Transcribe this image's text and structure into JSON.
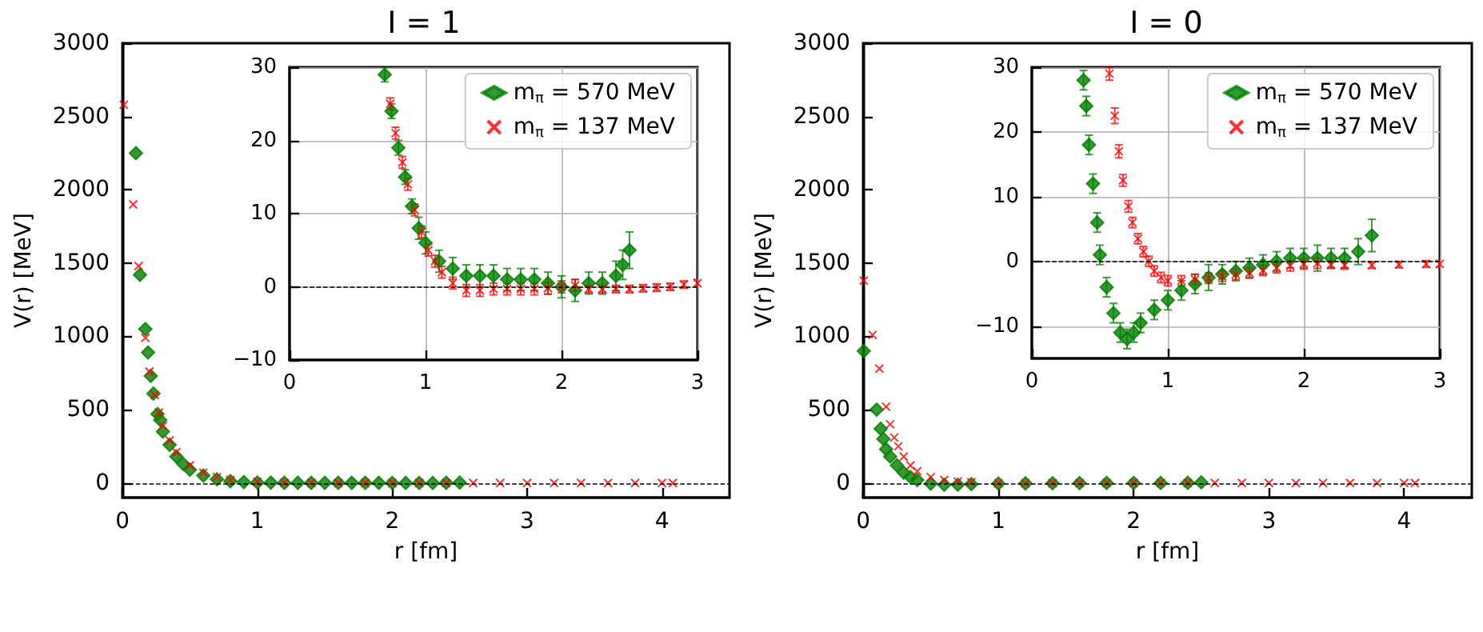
{
  "chart_data": [
    {
      "type": "scatter",
      "title": "I = 1",
      "xlabel": "r [fm]",
      "ylabel": "V(r) [MeV]",
      "xlim": [
        0,
        4.5
      ],
      "ylim": [
        -100,
        3000
      ],
      "xticks": [
        0,
        1,
        2,
        3,
        4
      ],
      "yticks": [
        0,
        500,
        1000,
        1500,
        2000,
        2500,
        3000
      ],
      "grid": false,
      "legend": false,
      "ref_lines": [
        {
          "axis": "y",
          "value": 0,
          "color": "#000000",
          "line_style": "dashed"
        }
      ],
      "series": [
        {
          "color": "#008000",
          "marker": "diamond",
          "x": [
            0.1,
            0.13,
            0.17,
            0.19,
            0.21,
            0.23,
            0.26,
            0.28,
            0.3,
            0.35,
            0.4,
            0.45,
            0.5,
            0.6,
            0.7,
            0.8,
            0.9,
            1.0,
            1.1,
            1.2,
            1.3,
            1.4,
            1.5,
            1.6,
            1.7,
            1.8,
            1.9,
            2.0,
            2.1,
            2.2,
            2.3,
            2.4,
            2.5
          ],
          "values": [
            2250,
            1420,
            1050,
            890,
            730,
            610,
            470,
            430,
            350,
            260,
            180,
            130,
            90,
            50,
            25,
            12,
            6,
            3,
            2,
            1,
            1,
            1,
            1,
            1,
            1,
            1,
            1,
            0,
            0,
            0,
            0,
            1,
            3
          ]
        },
        {
          "color": "#ff0000",
          "marker": "cross",
          "x": [
            0.01,
            0.08,
            0.12,
            0.17,
            0.2,
            0.24,
            0.27,
            0.3,
            0.35,
            0.4,
            0.5,
            0.6,
            0.7,
            0.8,
            1.0,
            1.2,
            1.4,
            1.6,
            1.8,
            2.0,
            2.2,
            2.4,
            2.6,
            2.8,
            3.0,
            3.2,
            3.4,
            3.6,
            3.8,
            4.0,
            4.08
          ],
          "values": [
            2580,
            1900,
            1480,
            990,
            760,
            600,
            480,
            390,
            290,
            210,
            120,
            70,
            40,
            20,
            8,
            1,
            0,
            0,
            0,
            0,
            0,
            0,
            0,
            0,
            0,
            0,
            0,
            0,
            0,
            0,
            0
          ]
        }
      ]
    },
    {
      "type": "scatter",
      "xlim": [
        0,
        3
      ],
      "ylim": [
        -10,
        30
      ],
      "xticks": [
        0,
        1,
        2,
        3
      ],
      "yticks": [
        -10,
        0,
        10,
        20,
        30
      ],
      "grid": true,
      "legend": "top right",
      "ref_lines": [
        {
          "axis": "y",
          "value": 0,
          "color": "#000000",
          "line_style": "dashed"
        }
      ],
      "series": [
        {
          "name": "m$_{π}$ = 570 MeV",
          "color": "#008000",
          "marker": "diamond",
          "x": [
            0.7,
            0.75,
            0.8,
            0.85,
            0.9,
            0.95,
            1.0,
            1.1,
            1.2,
            1.3,
            1.4,
            1.5,
            1.6,
            1.7,
            1.8,
            1.9,
            2.0,
            2.1,
            2.2,
            2.3,
            2.4,
            2.45,
            2.5
          ],
          "values": [
            29,
            24,
            19,
            15,
            11,
            8,
            6,
            3.5,
            2.5,
            1.5,
            1.5,
            1.5,
            1,
            1,
            1,
            0.5,
            0,
            -0.5,
            0.5,
            0.5,
            1.5,
            3,
            5
          ],
          "errors": [
            1,
            1,
            1,
            1,
            1,
            1.5,
            1.5,
            1.5,
            1.5,
            1.5,
            1.5,
            1.5,
            1.5,
            1.5,
            1.5,
            1.5,
            1.5,
            1.5,
            1.5,
            1.5,
            2,
            2,
            2.5
          ]
        },
        {
          "name": "m$_{π}$ = 137 MeV",
          "color": "#ff0000",
          "marker": "cross",
          "x": [
            0.74,
            0.78,
            0.83,
            0.87,
            0.92,
            0.97,
            1.02,
            1.07,
            1.12,
            1.2,
            1.3,
            1.4,
            1.5,
            1.6,
            1.7,
            1.8,
            1.9,
            2.0,
            2.1,
            2.2,
            2.3,
            2.4,
            2.5,
            2.6,
            2.7,
            2.8,
            2.9,
            3.0
          ],
          "values": [
            25,
            21,
            17,
            14,
            10.5,
            7.5,
            5,
            3.5,
            2,
            0.5,
            -0.5,
            -0.5,
            -0.3,
            -0.3,
            -0.3,
            -0.3,
            -0.2,
            0,
            0.2,
            -0.3,
            -0.3,
            -0.3,
            -0.3,
            -0.2,
            -0.1,
            0,
            0.3,
            0.5
          ],
          "errors": [
            0.8,
            0.8,
            0.8,
            0.8,
            0.8,
            0.8,
            0.8,
            0.8,
            0.8,
            0.8,
            0.8,
            0.8,
            0.8,
            0.8,
            0.8,
            0.8,
            0.8,
            0.8,
            0.8,
            0.5,
            0.5,
            0.5,
            0.5,
            0.5,
            0.5,
            0.5,
            0.5,
            0.5
          ]
        }
      ]
    },
    {
      "type": "scatter",
      "title": "I = 0",
      "xlabel": "r [fm]",
      "ylabel": "V(r) [MeV]",
      "xlim": [
        0,
        4.5
      ],
      "ylim": [
        -100,
        3000
      ],
      "xticks": [
        0,
        1,
        2,
        3,
        4
      ],
      "yticks": [
        0,
        500,
        1000,
        1500,
        2000,
        2500,
        3000
      ],
      "grid": false,
      "legend": false,
      "ref_lines": [
        {
          "axis": "y",
          "value": 0,
          "color": "#000000",
          "line_style": "dashed"
        }
      ],
      "series": [
        {
          "color": "#008000",
          "marker": "diamond",
          "x": [
            0.005,
            0.1,
            0.13,
            0.15,
            0.17,
            0.2,
            0.25,
            0.3,
            0.35,
            0.4,
            0.5,
            0.6,
            0.7,
            0.8,
            1.0,
            1.2,
            1.4,
            1.6,
            1.8,
            2.0,
            2.2,
            2.4,
            2.5
          ],
          "values": [
            900,
            500,
            370,
            300,
            230,
            180,
            120,
            70,
            40,
            20,
            -5,
            -12,
            -12,
            -8,
            -4,
            -3,
            -2,
            -1,
            0,
            0,
            0,
            1,
            4
          ]
        },
        {
          "color": "#ff0000",
          "marker": "cross",
          "x": [
            0.005,
            0.07,
            0.12,
            0.17,
            0.2,
            0.23,
            0.26,
            0.3,
            0.35,
            0.4,
            0.5,
            0.6,
            0.7,
            0.8,
            1.0,
            1.2,
            1.4,
            1.6,
            1.8,
            2.0,
            2.2,
            2.4,
            2.6,
            2.8,
            3.0,
            3.2,
            3.4,
            3.6,
            3.8,
            4.0,
            4.08
          ],
          "values": [
            1380,
            1010,
            780,
            520,
            400,
            310,
            250,
            180,
            120,
            80,
            40,
            20,
            10,
            5,
            -3,
            -3,
            -2,
            -2,
            -1,
            0,
            0,
            0,
            0,
            0,
            0,
            0,
            0,
            0,
            0,
            0,
            0
          ]
        }
      ]
    },
    {
      "type": "scatter",
      "xlim": [
        0,
        3
      ],
      "ylim": [
        -15,
        30
      ],
      "xticks": [
        0,
        1,
        2,
        3
      ],
      "yticks": [
        -10,
        0,
        10,
        20,
        30
      ],
      "grid": true,
      "legend": "top right",
      "ref_lines": [
        {
          "axis": "y",
          "value": 0,
          "color": "#000000",
          "line_style": "dashed"
        }
      ],
      "series": [
        {
          "name": "m$_{π}$ = 570 MeV",
          "color": "#008000",
          "marker": "diamond",
          "x": [
            0.38,
            0.4,
            0.42,
            0.45,
            0.48,
            0.5,
            0.55,
            0.6,
            0.65,
            0.7,
            0.75,
            0.8,
            0.9,
            1.0,
            1.1,
            1.2,
            1.3,
            1.4,
            1.5,
            1.6,
            1.7,
            1.8,
            1.9,
            2.0,
            2.1,
            2.2,
            2.3,
            2.4,
            2.5
          ],
          "values": [
            28,
            24,
            18,
            12,
            6,
            1,
            -4,
            -8,
            -11,
            -12,
            -11,
            -9.5,
            -7.5,
            -6,
            -4.5,
            -3.5,
            -2.5,
            -2,
            -1.5,
            -1,
            -0.5,
            0,
            0.5,
            0.5,
            0.5,
            0.5,
            0.5,
            1.5,
            4
          ],
          "errors": [
            1.5,
            1.5,
            1.5,
            1.5,
            1.5,
            1.5,
            1.5,
            1.5,
            1.5,
            1.5,
            1.5,
            1.5,
            1.5,
            1.5,
            1.5,
            1.5,
            2,
            1.5,
            1.5,
            1.5,
            1.5,
            1.5,
            1.5,
            1.5,
            2,
            1.5,
            1.5,
            2,
            2.5
          ]
        },
        {
          "name": "m$_{π}$ = 137 MeV",
          "color": "#ff0000",
          "marker": "cross",
          "x": [
            0.57,
            0.61,
            0.64,
            0.67,
            0.71,
            0.74,
            0.78,
            0.82,
            0.86,
            0.9,
            0.95,
            1.0,
            1.1,
            1.2,
            1.3,
            1.4,
            1.5,
            1.6,
            1.7,
            1.8,
            1.9,
            2.0,
            2.1,
            2.2,
            2.3,
            2.5,
            2.7,
            2.9,
            3.0
          ],
          "values": [
            29,
            22.5,
            17,
            12.5,
            8.5,
            6,
            3.5,
            1.5,
            0,
            -1.5,
            -2.5,
            -3,
            -3,
            -2.8,
            -2.6,
            -2.3,
            -2,
            -1.8,
            -1.4,
            -1,
            -0.7,
            -0.4,
            -0.3,
            -0.5,
            -0.6,
            -0.6,
            -0.5,
            -0.4,
            -0.4
          ],
          "errors": [
            1,
            1.2,
            1,
            0.9,
            0.9,
            0.8,
            0.8,
            0.8,
            0.8,
            0.8,
            0.8,
            0.8,
            0.8,
            0.8,
            0.8,
            0.8,
            0.8,
            0.8,
            0.8,
            0.8,
            0.8,
            0.8,
            0.8,
            0.6,
            0.6,
            0.5,
            0.5,
            0.5,
            0.5
          ]
        }
      ]
    }
  ]
}
